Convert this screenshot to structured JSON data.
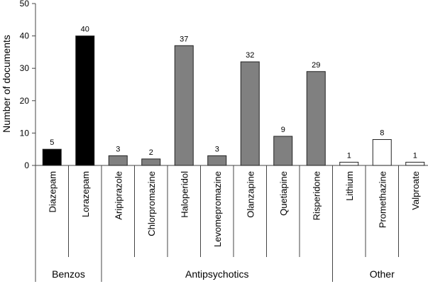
{
  "chart_data": {
    "type": "bar",
    "ylabel": "Number of documents",
    "ylim": [
      0,
      50
    ],
    "yticks": [
      0,
      10,
      20,
      30,
      40,
      50
    ],
    "grid": false,
    "categories": [
      "Diazepam",
      "Lorazepam",
      "Aripiprazole",
      "Chlorpromazine",
      "Haloperidol",
      "Levomepromazine",
      "Olanzapine",
      "Quetiapine",
      "Risperidone",
      "Lithium",
      "Promethazine",
      "Valproate"
    ],
    "values": [
      5,
      40,
      3,
      2,
      37,
      3,
      32,
      9,
      29,
      1,
      8,
      1
    ],
    "groups": [
      {
        "name": "Benzos",
        "count": 2,
        "color": "#000000"
      },
      {
        "name": "Antipsychotics",
        "count": 7,
        "color": "#808080"
      },
      {
        "name": "Other",
        "count": 3,
        "color": "#ffffff"
      }
    ]
  }
}
